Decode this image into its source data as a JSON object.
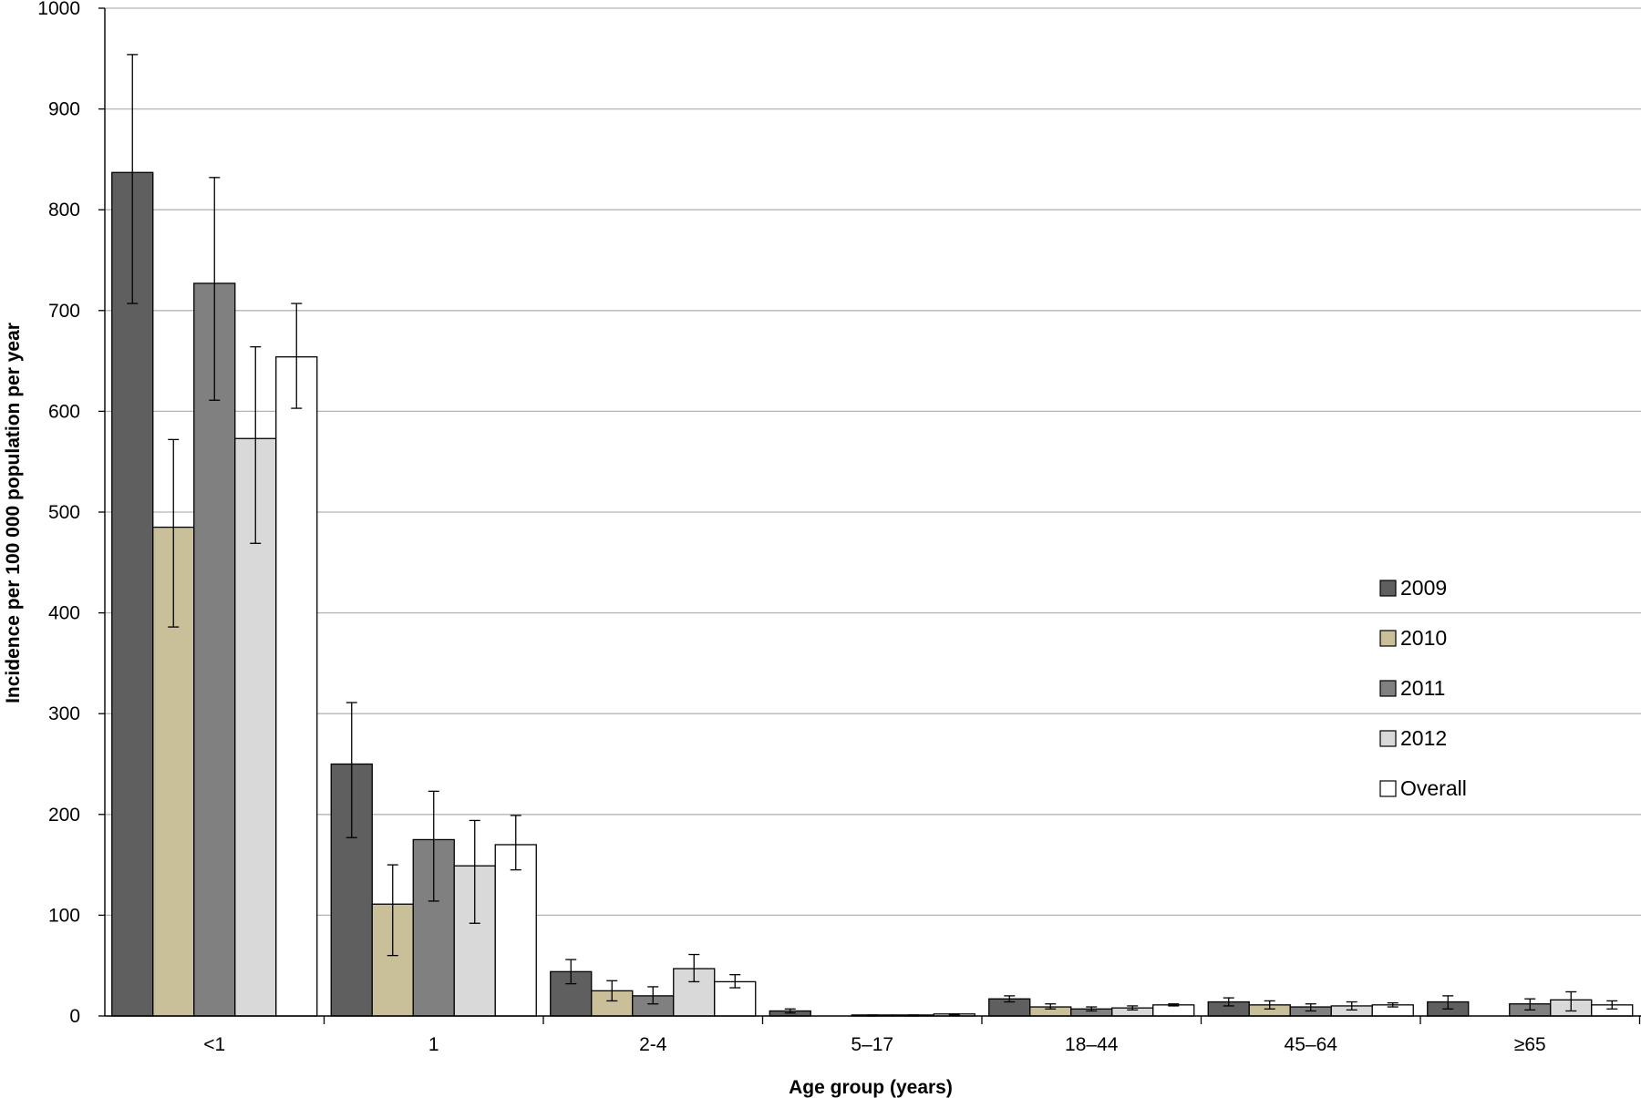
{
  "chart_data": {
    "type": "bar",
    "title": "",
    "xlabel": "Age group (years)",
    "ylabel": "Incidence per 100 000 population per year",
    "ylim": [
      0,
      1000
    ],
    "yticks": [
      "0",
      "100",
      "200",
      "300",
      "400",
      "500",
      "600",
      "700",
      "800",
      "900",
      "1000"
    ],
    "grid": true,
    "legend_position": "right",
    "categories": [
      "<1",
      "1",
      "2-4",
      "5–17",
      "18–44",
      "45–64",
      "≥65"
    ],
    "series": [
      {
        "name": "2009",
        "color": "#5f5f5f",
        "values": [
          837,
          250,
          44,
          5,
          17,
          14,
          14
        ],
        "error_low": [
          707,
          177,
          32,
          3,
          14,
          10,
          7
        ],
        "error_high": [
          954,
          311,
          56,
          7,
          20,
          18,
          20
        ]
      },
      {
        "name": "2010",
        "color": "#c9c09a",
        "values": [
          485,
          111,
          25,
          0,
          9,
          11,
          0
        ],
        "error_low": [
          386,
          60,
          15,
          0,
          7,
          7,
          0
        ],
        "error_high": [
          572,
          150,
          35,
          0,
          12,
          15,
          0
        ]
      },
      {
        "name": "2011",
        "color": "#808080",
        "values": [
          727,
          175,
          20,
          1,
          7,
          9,
          12
        ],
        "error_low": [
          611,
          114,
          12,
          0,
          5,
          5,
          6
        ],
        "error_high": [
          832,
          223,
          29,
          1,
          9,
          12,
          17
        ]
      },
      {
        "name": "2012",
        "color": "#d9d9d9",
        "values": [
          573,
          149,
          47,
          1,
          8,
          10,
          16
        ],
        "error_low": [
          469,
          92,
          34,
          0,
          6,
          6,
          5
        ],
        "error_high": [
          664,
          194,
          61,
          1,
          10,
          14,
          24
        ]
      },
      {
        "name": "Overall",
        "color": "#ffffff",
        "values": [
          654,
          170,
          34,
          2,
          11,
          11,
          11
        ],
        "error_low": [
          603,
          145,
          28,
          1,
          10,
          9,
          7
        ],
        "error_high": [
          707,
          199,
          41,
          2,
          12,
          13,
          15
        ]
      }
    ]
  }
}
